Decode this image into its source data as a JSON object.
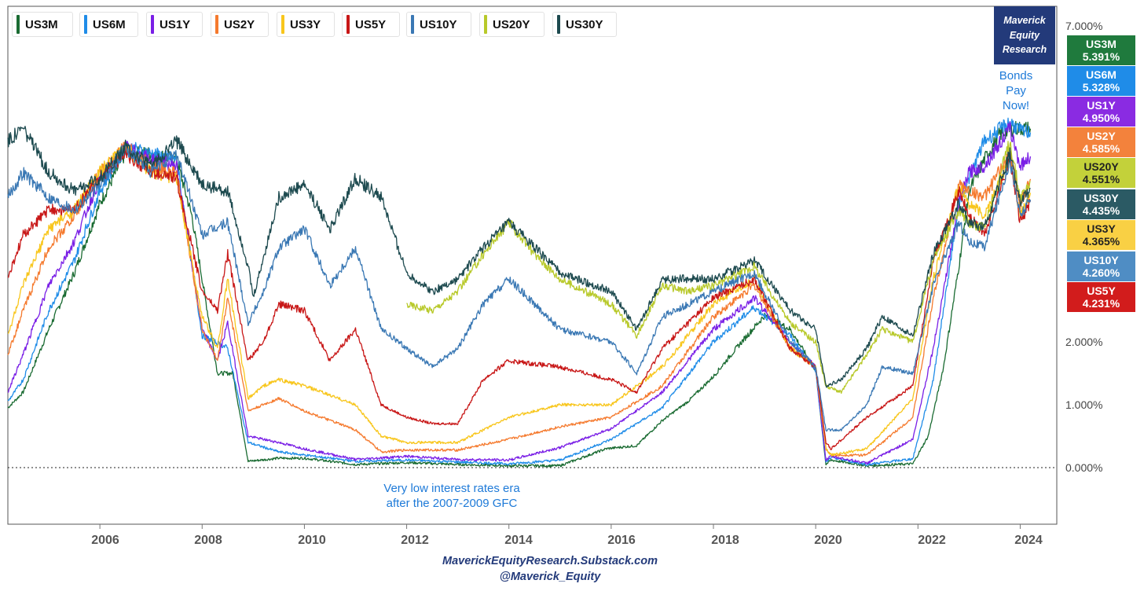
{
  "brand": {
    "lines": [
      "Maverick",
      "Equity",
      "Research"
    ]
  },
  "footer": {
    "line1": "MaverickEquityResearch.Substack.com",
    "line2": "@Maverick_Equity"
  },
  "annotations": {
    "bonds": [
      "Bonds",
      "Pay",
      "Now!"
    ],
    "low_rates": [
      "Very low interest rates era",
      "after the 2007-2009 GFC"
    ]
  },
  "badges": [
    {
      "name": "US3M",
      "value": "5.391%",
      "color": "#1f7a3d"
    },
    {
      "name": "US6M",
      "value": "5.328%",
      "color": "#1f8ce8"
    },
    {
      "name": "US1Y",
      "value": "4.950%",
      "color": "#8a2be2"
    },
    {
      "name": "US2Y",
      "value": "4.585%",
      "color": "#f3823c"
    },
    {
      "name": "US20Y",
      "value": "4.551%",
      "color": "#c3d13a"
    },
    {
      "name": "US30Y",
      "value": "4.435%",
      "color": "#2b5a64"
    },
    {
      "name": "US3Y",
      "value": "4.365%",
      "color": "#f9d044"
    },
    {
      "name": "US10Y",
      "value": "4.260%",
      "color": "#4f8dc4"
    },
    {
      "name": "US5Y",
      "value": "4.231%",
      "color": "#d21c1c"
    }
  ],
  "chart_data": {
    "type": "line",
    "x_unit": "year",
    "xlim": [
      2004.2,
      2024.7
    ],
    "ylim": [
      -0.008,
      0.07
    ],
    "y_ticks": [
      "7.000%",
      "2.000%",
      "1.000%",
      "0.000%"
    ],
    "x_ticks": [
      "2006",
      "2008",
      "2010",
      "2012",
      "2014",
      "2016",
      "2018",
      "2020",
      "2022",
      "2024"
    ],
    "grid": false,
    "legend": "top",
    "series": [
      {
        "name": "US3M",
        "color": "#1a6b32",
        "x": [
          2004.2,
          2004.5,
          2005.0,
          2005.5,
          2006.0,
          2006.5,
          2007.0,
          2007.5,
          2007.8,
          2008.0,
          2008.3,
          2008.6,
          2008.9,
          2009.5,
          2010,
          2011,
          2012,
          2013,
          2014,
          2015,
          2015.9,
          2016.5,
          2017,
          2017.5,
          2018,
          2018.5,
          2019,
          2019.5,
          2020.0,
          2020.2,
          2020.3,
          2021,
          2021.9,
          2022.2,
          2022.5,
          2022.8,
          2023.0,
          2023.3,
          2023.6,
          2023.9,
          2024.2
        ],
        "y": [
          0.0095,
          0.012,
          0.022,
          0.031,
          0.042,
          0.05,
          0.05,
          0.049,
          0.04,
          0.03,
          0.015,
          0.015,
          0.001,
          0.0015,
          0.0015,
          0.0005,
          0.0008,
          0.0005,
          0.0003,
          0.0003,
          0.003,
          0.0035,
          0.0075,
          0.0105,
          0.0145,
          0.0195,
          0.0242,
          0.022,
          0.0155,
          0.0005,
          0.0012,
          0.0003,
          0.0006,
          0.005,
          0.016,
          0.032,
          0.044,
          0.049,
          0.053,
          0.054,
          0.0539
        ]
      },
      {
        "name": "US6M",
        "color": "#1f8ce8",
        "x": [
          2004.2,
          2004.5,
          2005.0,
          2005.5,
          2006.0,
          2006.5,
          2007.0,
          2007.5,
          2008.0,
          2008.5,
          2008.9,
          2009.5,
          2010,
          2011,
          2012,
          2013,
          2014,
          2015,
          2016,
          2017,
          2018,
          2018.8,
          2019.5,
          2020.0,
          2020.2,
          2020.3,
          2021,
          2021.9,
          2022.3,
          2022.8,
          2023.3,
          2023.8,
          2024.0,
          2024.2
        ],
        "y": [
          0.0105,
          0.014,
          0.025,
          0.033,
          0.044,
          0.051,
          0.05,
          0.049,
          0.021,
          0.019,
          0.004,
          0.0025,
          0.002,
          0.001,
          0.0012,
          0.0009,
          0.0006,
          0.0012,
          0.0045,
          0.0095,
          0.02,
          0.0255,
          0.021,
          0.0155,
          0.0008,
          0.0016,
          0.0005,
          0.0014,
          0.014,
          0.042,
          0.052,
          0.055,
          0.0535,
          0.0533
        ]
      },
      {
        "name": "US1Y",
        "color": "#7a1fe6",
        "x": [
          2004.2,
          2004.5,
          2005.0,
          2005.5,
          2006.0,
          2006.5,
          2007.0,
          2007.5,
          2008.0,
          2008.3,
          2008.5,
          2008.9,
          2009.5,
          2010,
          2011,
          2012,
          2013,
          2014,
          2015,
          2016,
          2017,
          2018,
          2018.8,
          2019.5,
          2020.0,
          2020.2,
          2020.3,
          2021,
          2021.9,
          2022.3,
          2022.8,
          2023.0,
          2023.3,
          2023.8,
          2024.0,
          2024.2
        ],
        "y": [
          0.012,
          0.018,
          0.029,
          0.036,
          0.046,
          0.051,
          0.049,
          0.048,
          0.022,
          0.017,
          0.023,
          0.005,
          0.004,
          0.003,
          0.0013,
          0.0018,
          0.0013,
          0.0012,
          0.0032,
          0.0062,
          0.012,
          0.022,
          0.027,
          0.02,
          0.016,
          0.0012,
          0.0018,
          0.0007,
          0.0045,
          0.019,
          0.042,
          0.047,
          0.048,
          0.054,
          0.048,
          0.0495
        ]
      },
      {
        "name": "US2Y",
        "color": "#f57a2e",
        "x": [
          2004.2,
          2004.5,
          2005.0,
          2005.5,
          2006.0,
          2006.5,
          2007.0,
          2007.5,
          2008.0,
          2008.3,
          2008.5,
          2008.9,
          2009.2,
          2009.5,
          2010,
          2011,
          2011.5,
          2012,
          2013,
          2014,
          2015,
          2016,
          2017,
          2018,
          2018.8,
          2019.5,
          2020.0,
          2020.2,
          2020.3,
          2021,
          2021.9,
          2022.3,
          2022.8,
          2023.0,
          2023.3,
          2023.8,
          2024.0,
          2024.2
        ],
        "y": [
          0.018,
          0.025,
          0.035,
          0.04,
          0.047,
          0.051,
          0.048,
          0.047,
          0.022,
          0.017,
          0.027,
          0.009,
          0.01,
          0.011,
          0.009,
          0.006,
          0.0025,
          0.0028,
          0.0028,
          0.0045,
          0.0065,
          0.008,
          0.013,
          0.024,
          0.029,
          0.019,
          0.016,
          0.003,
          0.002,
          0.002,
          0.008,
          0.027,
          0.045,
          0.044,
          0.043,
          0.05,
          0.042,
          0.0459
        ]
      },
      {
        "name": "US3Y",
        "color": "#f8c61c",
        "x": [
          2004.2,
          2004.5,
          2005.0,
          2005.5,
          2006.0,
          2006.5,
          2007.0,
          2007.5,
          2008.0,
          2008.3,
          2008.5,
          2008.9,
          2009.2,
          2009.5,
          2010,
          2011,
          2011.5,
          2012,
          2013,
          2013.5,
          2014,
          2015,
          2016,
          2017,
          2018,
          2018.8,
          2019.5,
          2020.0,
          2020.2,
          2020.3,
          2021,
          2021.9,
          2022.3,
          2022.8,
          2023.0,
          2023.3,
          2023.8,
          2024.0,
          2024.2
        ],
        "y": [
          0.021,
          0.029,
          0.038,
          0.041,
          0.047,
          0.051,
          0.047,
          0.046,
          0.024,
          0.019,
          0.03,
          0.011,
          0.013,
          0.014,
          0.013,
          0.01,
          0.005,
          0.004,
          0.004,
          0.006,
          0.008,
          0.01,
          0.01,
          0.016,
          0.026,
          0.03,
          0.019,
          0.016,
          0.003,
          0.002,
          0.003,
          0.011,
          0.03,
          0.045,
          0.042,
          0.04,
          0.049,
          0.04,
          0.0437
        ]
      },
      {
        "name": "US5Y",
        "color": "#c81717",
        "x": [
          2004.2,
          2004.5,
          2005.0,
          2005.5,
          2006.0,
          2006.5,
          2007.0,
          2007.5,
          2008.0,
          2008.3,
          2008.5,
          2008.9,
          2009.2,
          2009.5,
          2010.0,
          2010.5,
          2011,
          2011.5,
          2012,
          2012.5,
          2013.0,
          2013.5,
          2014,
          2015,
          2016,
          2016.5,
          2017,
          2018,
          2018.8,
          2019.5,
          2020.0,
          2020.2,
          2020.3,
          2021,
          2021.9,
          2022.3,
          2022.8,
          2023.0,
          2023.3,
          2023.8,
          2024.0,
          2024.2
        ],
        "y": [
          0.03,
          0.037,
          0.041,
          0.041,
          0.046,
          0.05,
          0.047,
          0.046,
          0.028,
          0.025,
          0.034,
          0.017,
          0.02,
          0.026,
          0.025,
          0.017,
          0.022,
          0.01,
          0.008,
          0.007,
          0.007,
          0.014,
          0.017,
          0.016,
          0.014,
          0.012,
          0.019,
          0.027,
          0.03,
          0.019,
          0.016,
          0.004,
          0.003,
          0.008,
          0.013,
          0.033,
          0.044,
          0.04,
          0.037,
          0.049,
          0.039,
          0.0423
        ]
      },
      {
        "name": "US10Y",
        "color": "#3a78b4",
        "x": [
          2004.2,
          2004.5,
          2005.0,
          2005.5,
          2006.0,
          2006.5,
          2007.0,
          2007.5,
          2008.0,
          2008.5,
          2008.9,
          2009.2,
          2009.5,
          2010.0,
          2010.5,
          2011.0,
          2011.5,
          2012.0,
          2012.5,
          2013.0,
          2013.5,
          2014.0,
          2015.0,
          2016.0,
          2016.5,
          2017.0,
          2018.0,
          2018.8,
          2019.5,
          2020.0,
          2020.2,
          2020.5,
          2021.0,
          2021.3,
          2021.9,
          2022.3,
          2022.8,
          2023.0,
          2023.3,
          2023.8,
          2024.0,
          2024.2
        ],
        "y": [
          0.043,
          0.047,
          0.043,
          0.041,
          0.045,
          0.051,
          0.047,
          0.05,
          0.037,
          0.039,
          0.023,
          0.028,
          0.035,
          0.038,
          0.029,
          0.035,
          0.022,
          0.019,
          0.016,
          0.019,
          0.026,
          0.03,
          0.022,
          0.02,
          0.015,
          0.024,
          0.028,
          0.031,
          0.02,
          0.016,
          0.006,
          0.006,
          0.01,
          0.016,
          0.015,
          0.029,
          0.039,
          0.036,
          0.035,
          0.049,
          0.04,
          0.0426
        ]
      },
      {
        "name": "US20Y",
        "color": "#b8c92a",
        "x": [
          2012.0,
          2012.5,
          2013.0,
          2013.5,
          2014.0,
          2014.5,
          2015.0,
          2015.5,
          2016.0,
          2016.5,
          2017.0,
          2017.5,
          2018.0,
          2018.8,
          2019.5,
          2020.0,
          2020.2,
          2020.5,
          2021.0,
          2021.3,
          2021.9,
          2022.3,
          2022.8,
          2023.0,
          2023.3,
          2023.8,
          2024.0,
          2024.2
        ],
        "y": [
          0.026,
          0.025,
          0.028,
          0.034,
          0.039,
          0.034,
          0.03,
          0.028,
          0.026,
          0.021,
          0.029,
          0.028,
          0.029,
          0.032,
          0.023,
          0.02,
          0.013,
          0.012,
          0.018,
          0.022,
          0.02,
          0.033,
          0.041,
          0.039,
          0.038,
          0.052,
          0.043,
          0.0455
        ]
      },
      {
        "name": "US30Y",
        "color": "#1d4a4f",
        "x": [
          2004.2,
          2004.5,
          2005.0,
          2005.5,
          2006.0,
          2006.5,
          2007.0,
          2007.5,
          2008.0,
          2008.5,
          2008.9,
          2009.0,
          2009.5,
          2010.0,
          2010.5,
          2011.0,
          2011.5,
          2012.0,
          2012.5,
          2013.0,
          2013.5,
          2014.0,
          2015.0,
          2016.0,
          2016.5,
          2017.0,
          2018.0,
          2018.8,
          2019.5,
          2020.0,
          2020.2,
          2020.5,
          2021.0,
          2021.3,
          2021.9,
          2022.3,
          2022.8,
          2023.0,
          2023.3,
          2023.8,
          2024.0,
          2024.2
        ],
        "y": [
          0.052,
          0.054,
          0.047,
          0.044,
          0.046,
          0.051,
          0.048,
          0.052,
          0.045,
          0.044,
          0.032,
          0.027,
          0.043,
          0.045,
          0.038,
          0.046,
          0.043,
          0.031,
          0.028,
          0.03,
          0.035,
          0.039,
          0.031,
          0.028,
          0.022,
          0.03,
          0.03,
          0.033,
          0.025,
          0.022,
          0.013,
          0.014,
          0.019,
          0.024,
          0.021,
          0.034,
          0.042,
          0.039,
          0.038,
          0.05,
          0.042,
          0.0444
        ]
      }
    ]
  }
}
